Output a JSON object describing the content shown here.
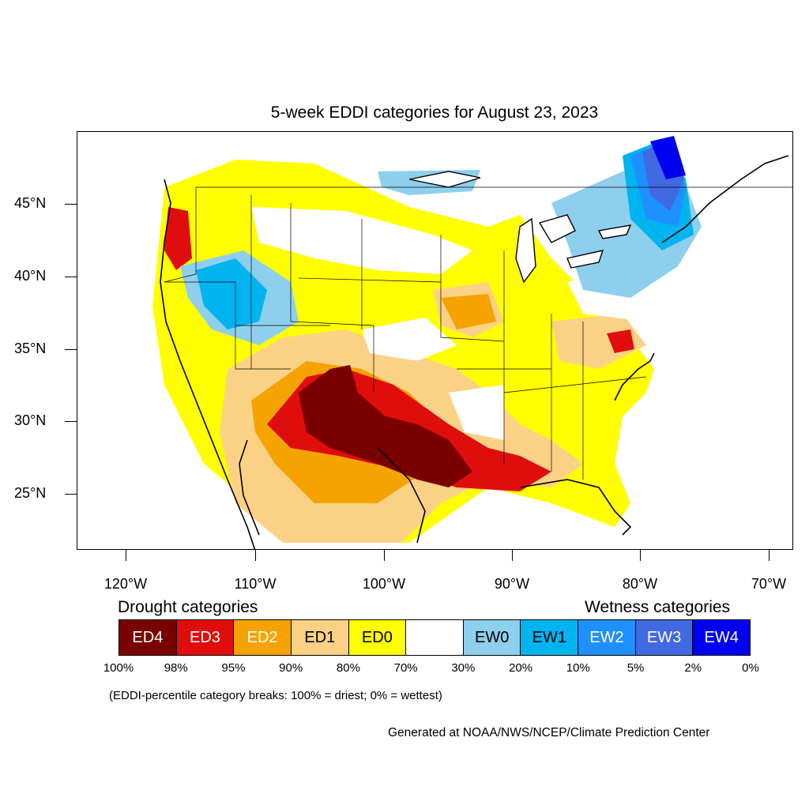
{
  "title": "5-week EDDI categories for August 23, 2023",
  "lat_labels": [
    "45°N",
    "40°N",
    "35°N",
    "30°N",
    "25°N"
  ],
  "lon_labels": [
    "120°W",
    "110°W",
    "100°W",
    "90°W",
    "80°W",
    "70°W"
  ],
  "legend": {
    "drought_heading": "Drought categories",
    "wetness_heading": "Wetness categories",
    "categories": [
      {
        "label": "ED4",
        "color": "#7a0000",
        "text_color": "#ffffff"
      },
      {
        "label": "ED3",
        "color": "#e00d0d",
        "text_color": "#ffffff"
      },
      {
        "label": "ED2",
        "color": "#f5a300",
        "text_color": "#ffffff"
      },
      {
        "label": "ED1",
        "color": "#fbd285",
        "text_color": "#000000"
      },
      {
        "label": "ED0",
        "color": "#ffff00",
        "text_color": "#000000"
      },
      {
        "label": "",
        "color": "#ffffff",
        "text_color": "#000000"
      },
      {
        "label": "EW0",
        "color": "#8fcfee",
        "text_color": "#000000"
      },
      {
        "label": "EW1",
        "color": "#00b4f0",
        "text_color": "#000000"
      },
      {
        "label": "EW2",
        "color": "#1e90ff",
        "text_color": "#ffffff"
      },
      {
        "label": "EW3",
        "color": "#4169e1",
        "text_color": "#ffffff"
      },
      {
        "label": "EW4",
        "color": "#0000f0",
        "text_color": "#ffffff"
      }
    ],
    "breaks": [
      "100%",
      "98%",
      "95%",
      "90%",
      "80%",
      "70%",
      "30%",
      "20%",
      "10%",
      "5%",
      "2%",
      "0%"
    ]
  },
  "note": "(EDDI-percentile category breaks: 100% = driest; 0% = wettest)",
  "credit": "Generated at NOAA/NWS/NCEP/Climate Prediction Center"
}
